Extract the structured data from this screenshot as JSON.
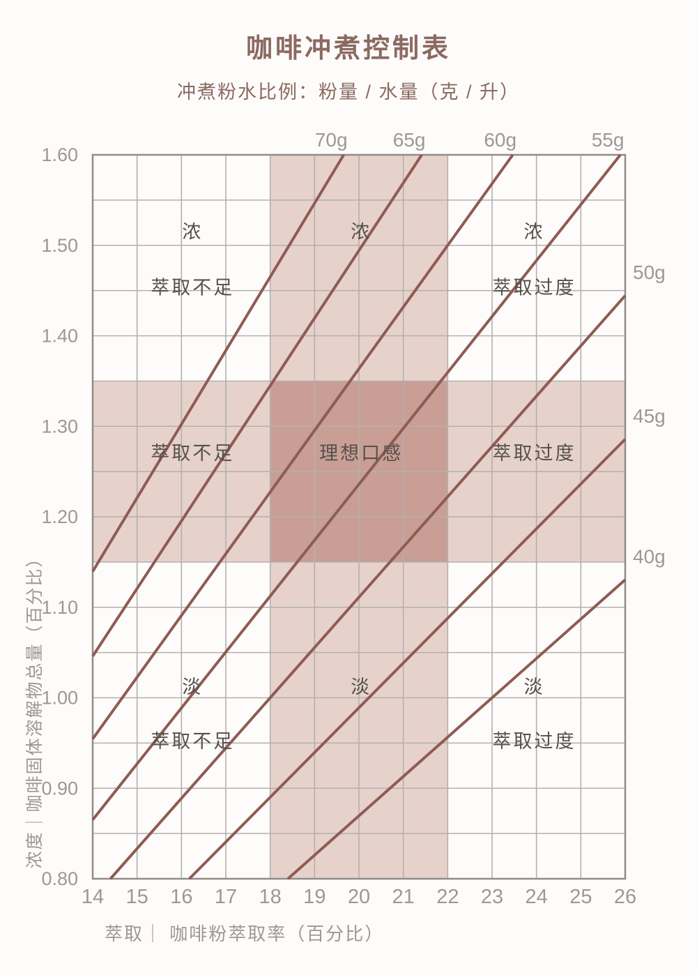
{
  "page": {
    "title": "咖啡冲煮控制表",
    "subtitle": "冲煮粉水比例：粉量 / 水量（克 / 升）"
  },
  "chart_data": {
    "type": "line",
    "title": "咖啡冲煮控制表",
    "subtitle": "冲煮粉水比例：粉量 / 水量（克 / 升）",
    "xlabel": "萃取｜ 咖啡粉萃取率（百分比）",
    "ylabel": "浓度｜咖啡固体溶解物总量（百分比）",
    "xlim": [
      14,
      26
    ],
    "ylim": [
      0.8,
      1.6
    ],
    "x_ticks": [
      14,
      15,
      16,
      17,
      18,
      19,
      20,
      21,
      22,
      23,
      24,
      25,
      26
    ],
    "y_ticks": [
      "0.80",
      "0.90",
      "1.00",
      "1.10",
      "1.20",
      "1.30",
      "1.40",
      "1.50",
      "1.60"
    ],
    "x_grid_step": 1,
    "y_grid_step": 0.05,
    "grid": true,
    "legend_position": "none",
    "line_formula": "TDS% = EY% * dose / (1000 - 2*dose)",
    "series": [
      {
        "name": "70g",
        "dose_g_per_L": 70,
        "slope_tds_per_ey": 0.0814,
        "points": [
          [
            14,
            1.14
          ],
          [
            19.66,
            1.6
          ]
        ],
        "label_edge": "top"
      },
      {
        "name": "65g",
        "dose_g_per_L": 65,
        "slope_tds_per_ey": 0.0747,
        "points": [
          [
            14,
            1.05
          ],
          [
            21.42,
            1.6
          ]
        ],
        "label_edge": "top"
      },
      {
        "name": "60g",
        "dose_g_per_L": 60,
        "slope_tds_per_ey": 0.0682,
        "points": [
          [
            14,
            0.95
          ],
          [
            23.47,
            1.6
          ]
        ],
        "label_edge": "top"
      },
      {
        "name": "55g",
        "dose_g_per_L": 55,
        "slope_tds_per_ey": 0.0618,
        "points": [
          [
            14,
            0.87
          ],
          [
            25.89,
            1.6
          ]
        ],
        "label_edge": "top"
      },
      {
        "name": "50g",
        "dose_g_per_L": 50,
        "slope_tds_per_ey": 0.0556,
        "points": [
          [
            14.4,
            0.8
          ],
          [
            26,
            1.44
          ]
        ],
        "label_edge": "right"
      },
      {
        "name": "45g",
        "dose_g_per_L": 45,
        "slope_tds_per_ey": 0.0495,
        "points": [
          [
            16.18,
            0.8
          ],
          [
            26,
            1.29
          ]
        ],
        "label_edge": "right"
      },
      {
        "name": "40g",
        "dose_g_per_L": 40,
        "slope_tds_per_ey": 0.0435,
        "points": [
          [
            18.4,
            0.8
          ],
          [
            26,
            1.13
          ]
        ],
        "label_edge": "right"
      }
    ],
    "ideal_extraction_range": [
      18,
      22
    ],
    "ideal_tds_range": [
      1.15,
      1.35
    ],
    "annotations": [
      {
        "text": "浓",
        "x": 16.25,
        "y": 1.515
      },
      {
        "text": "萃取不足",
        "x": 16.25,
        "y": 1.453
      },
      {
        "text": "浓",
        "x": 20.05,
        "y": 1.515
      },
      {
        "text": "浓",
        "x": 23.95,
        "y": 1.515
      },
      {
        "text": "萃取过度",
        "x": 23.95,
        "y": 1.453
      },
      {
        "text": "萃取不足",
        "x": 16.25,
        "y": 1.27
      },
      {
        "text": "理想口感",
        "x": 20.05,
        "y": 1.27
      },
      {
        "text": "萃取过度",
        "x": 23.95,
        "y": 1.27
      },
      {
        "text": "淡",
        "x": 16.25,
        "y": 1.012
      },
      {
        "text": "萃取不足",
        "x": 16.25,
        "y": 0.952
      },
      {
        "text": "淡",
        "x": 20.05,
        "y": 1.012
      },
      {
        "text": "淡",
        "x": 23.95,
        "y": 1.012
      },
      {
        "text": "萃取过度",
        "x": 23.95,
        "y": 0.952
      }
    ],
    "colors": {
      "line": "#8f5b54",
      "band_light": "#e6d2cb",
      "band_overlap": "#c89e95",
      "grid": "#b3b0ae",
      "border": "#8f8c8a",
      "tick_text": "#9c9896",
      "region_text": "#56504b",
      "title_text": "#8b6a61"
    }
  }
}
